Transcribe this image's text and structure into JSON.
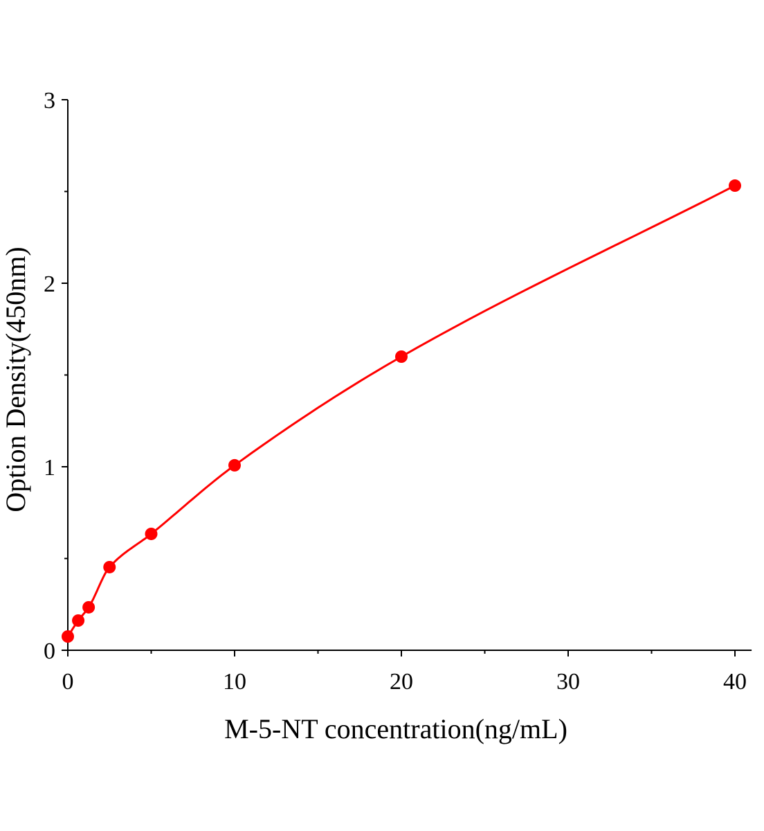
{
  "chart_data": {
    "type": "scatter",
    "title": "",
    "xlabel": "M-5-NT concentration(ng/mL)",
    "ylabel": "Option Density(450nm)",
    "xlim": [
      0,
      41
    ],
    "ylim": [
      0,
      3
    ],
    "x_ticks": [
      0,
      10,
      20,
      30,
      40
    ],
    "x_minor_ticks": [
      5,
      15,
      25,
      35
    ],
    "y_ticks": [
      0,
      1,
      2,
      3
    ],
    "y_minor_ticks": [
      0.5,
      1.5,
      2.5
    ],
    "grid": false,
    "legend": "none",
    "color": "#ff0000",
    "fit_curve": true,
    "points": {
      "x": [
        0,
        0.625,
        1.25,
        2.5,
        5,
        10,
        20,
        40
      ],
      "y": [
        0.075,
        0.162,
        0.234,
        0.453,
        0.634,
        1.008,
        1.6,
        2.532
      ]
    }
  }
}
